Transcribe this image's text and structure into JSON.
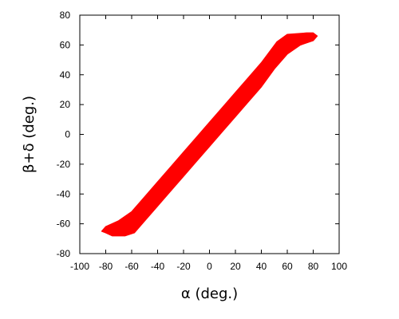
{
  "chart_data": {
    "type": "scatter",
    "title": "",
    "xlabel": "α (deg.)",
    "ylabel": "β+δ (deg.)",
    "xlim": [
      -100,
      100
    ],
    "ylim": [
      -80,
      80
    ],
    "xticks": [
      -100,
      -80,
      -60,
      -40,
      -20,
      0,
      20,
      40,
      60,
      80,
      100
    ],
    "yticks": [
      -80,
      -60,
      -40,
      -20,
      0,
      20,
      40,
      60,
      80
    ],
    "grid": false,
    "legend": "none",
    "series": [
      {
        "color": "#ff0000",
        "description_region": [
          [
            -83,
            -65
          ],
          [
            -80,
            -66
          ],
          [
            -75,
            -68
          ],
          [
            -65,
            -68
          ],
          [
            -58,
            -66
          ],
          [
            -50,
            -58
          ],
          [
            -40,
            -48
          ],
          [
            -30,
            -38
          ],
          [
            -20,
            -28
          ],
          [
            -10,
            -18
          ],
          [
            0,
            -8
          ],
          [
            10,
            2
          ],
          [
            20,
            12
          ],
          [
            30,
            22
          ],
          [
            40,
            32
          ],
          [
            50,
            44
          ],
          [
            60,
            54
          ],
          [
            70,
            60
          ],
          [
            80,
            63
          ],
          [
            83,
            66
          ],
          [
            80,
            68
          ],
          [
            75,
            68
          ],
          [
            60,
            67
          ],
          [
            52,
            62
          ],
          [
            40,
            48
          ],
          [
            30,
            38
          ],
          [
            20,
            28
          ],
          [
            10,
            18
          ],
          [
            0,
            8
          ],
          [
            -10,
            -2
          ],
          [
            -20,
            -12
          ],
          [
            -30,
            -22
          ],
          [
            -40,
            -32
          ],
          [
            -50,
            -42
          ],
          [
            -60,
            -52
          ],
          [
            -70,
            -58
          ],
          [
            -80,
            -62
          ]
        ]
      }
    ]
  }
}
